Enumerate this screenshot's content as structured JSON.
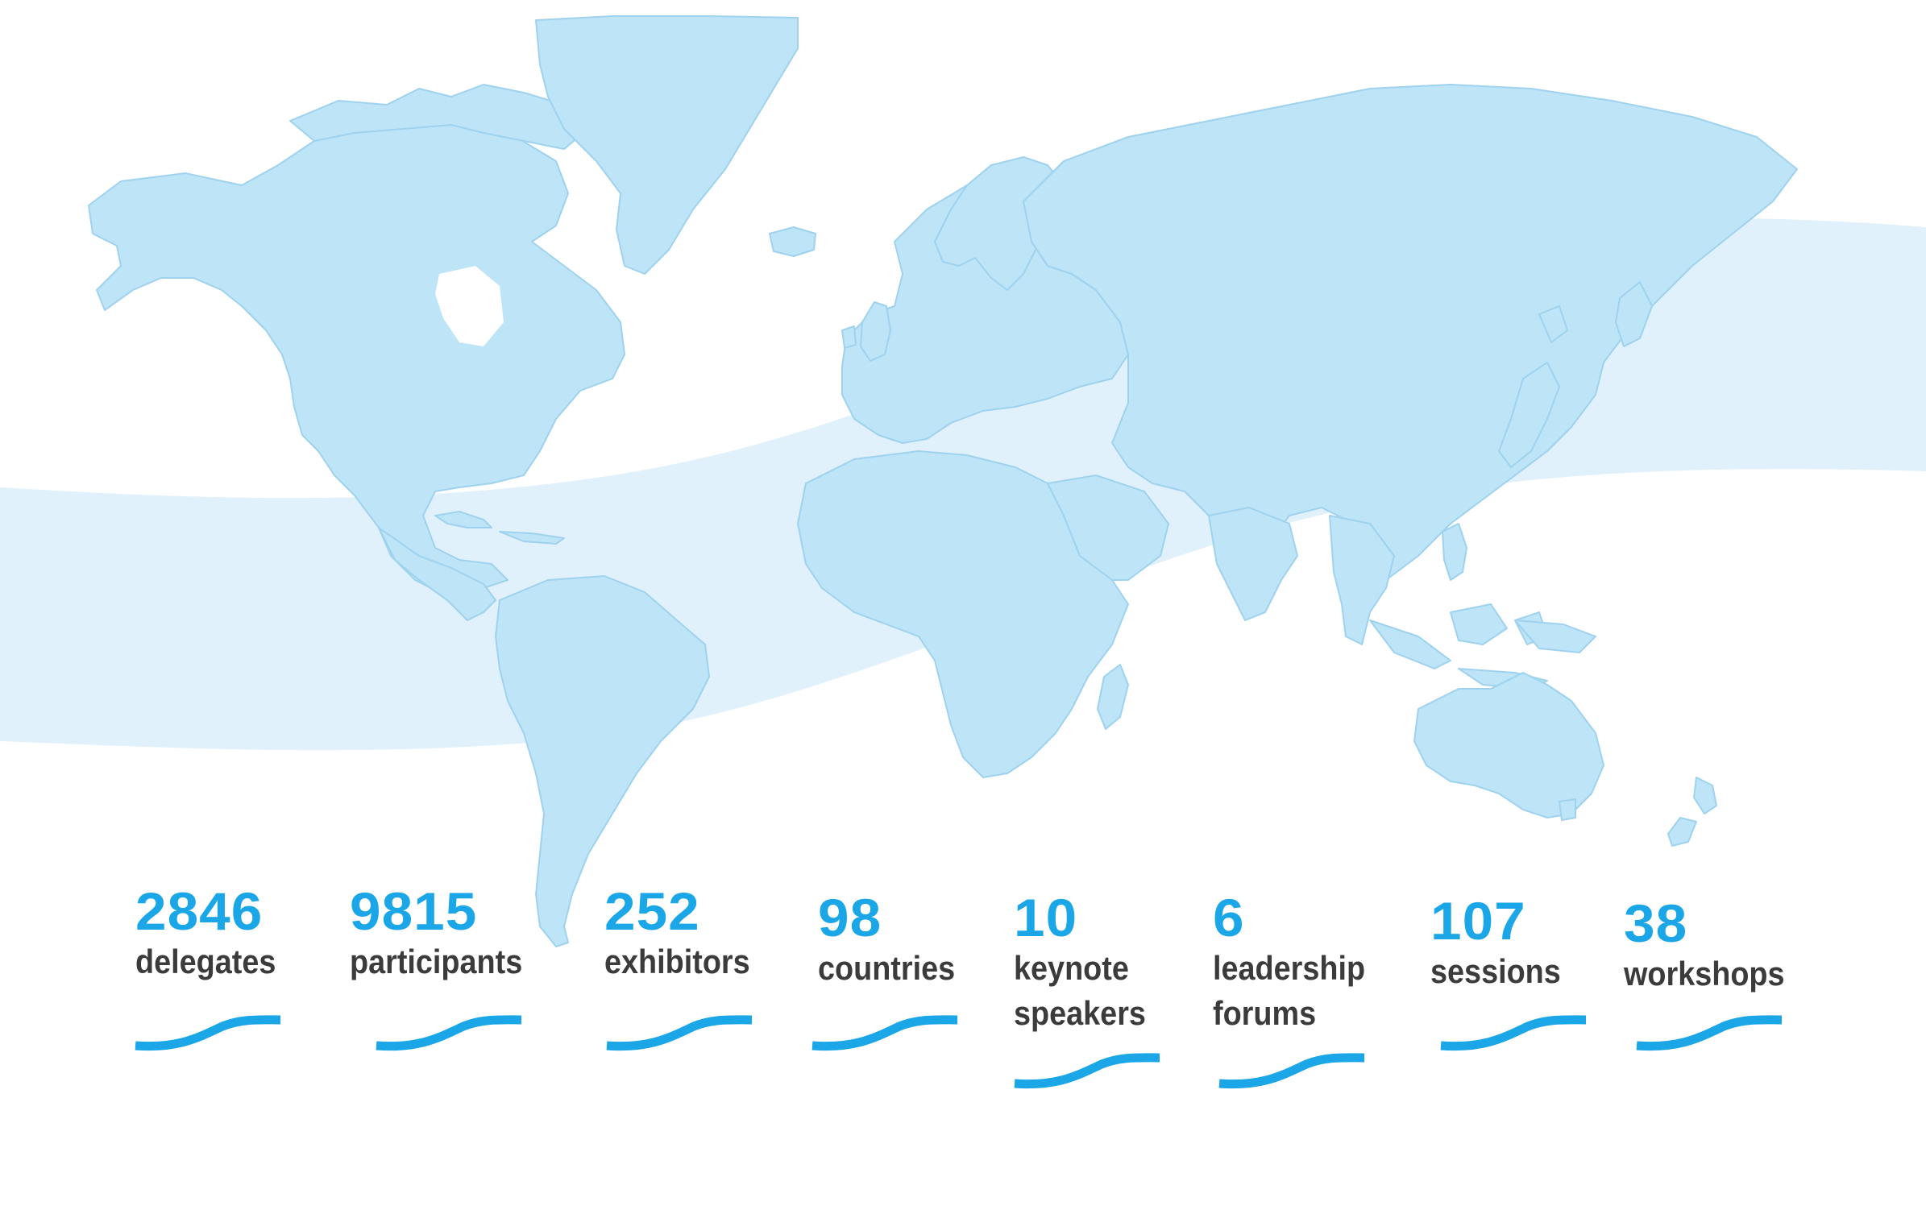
{
  "colors": {
    "accent": "#1ba6e8",
    "label": "#3b3b3b",
    "land": "#bde4f7",
    "land_border": "#9fd2ee",
    "band": "#e0f1fb"
  },
  "stats": [
    {
      "value": "2846",
      "label": "delegates"
    },
    {
      "value": "9815",
      "label": "participants"
    },
    {
      "value": "252",
      "label": "exhibitors"
    },
    {
      "value": "98",
      "label": "countries"
    },
    {
      "value": "10",
      "label": "keynote speakers"
    },
    {
      "value": "6",
      "label": "leadership forums"
    },
    {
      "value": "107",
      "label": "sessions"
    },
    {
      "value": "38",
      "label": "workshops"
    }
  ]
}
